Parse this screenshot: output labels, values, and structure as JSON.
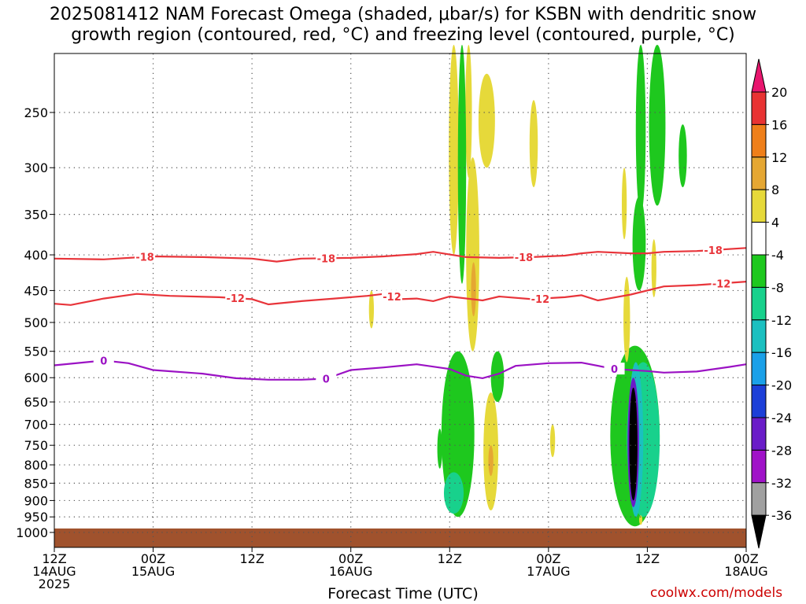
{
  "chart_data": {
    "type": "heatmap",
    "title_line1": "2025081412 NAM Forecast Omega (shaded, μbar/s) for KSBN with dendritic snow",
    "title_line2": "growth region (contoured, red, °C) and freezing level (contoured, purple, °C)",
    "xlabel": "Forecast Time (UTC)",
    "x_ticks": [
      {
        "hour": 0,
        "line1": "12Z",
        "line2": "14AUG",
        "line3": "2025"
      },
      {
        "hour": 12,
        "line1": "00Z",
        "line2": "15AUG",
        "line3": ""
      },
      {
        "hour": 24,
        "line1": "12Z",
        "line2": "",
        "line3": ""
      },
      {
        "hour": 36,
        "line1": "00Z",
        "line2": "16AUG",
        "line3": ""
      },
      {
        "hour": 48,
        "line1": "12Z",
        "line2": "",
        "line3": ""
      },
      {
        "hour": 60,
        "line1": "00Z",
        "line2": "17AUG",
        "line3": ""
      },
      {
        "hour": 72,
        "line1": "12Z",
        "line2": "",
        "line3": ""
      },
      {
        "hour": 84,
        "line1": "00Z",
        "line2": "18AUG",
        "line3": ""
      }
    ],
    "x_range_hours": [
      0,
      84
    ],
    "y_ticks_mb": [
      250,
      300,
      350,
      400,
      450,
      500,
      550,
      600,
      650,
      700,
      750,
      800,
      850,
      900,
      950,
      1000
    ],
    "y_range_mb": [
      200,
      1010
    ],
    "y_scale": "log-pressure",
    "grid": true,
    "colorbar_labels": [
      "20",
      "16",
      "12",
      "8",
      "4",
      "-4",
      "-8",
      "-12",
      "-16",
      "-20",
      "-24",
      "-28",
      "-32",
      "-36"
    ],
    "colorbar_colors": [
      "#e8166e",
      "#e83333",
      "#ef7f1a",
      "#e5a733",
      "#e6d93a",
      "#ffffff",
      "#1ec81e",
      "#18d18c",
      "#1bc0c0",
      "#1aa0e8",
      "#1c3fd8",
      "#6a1cc8",
      "#a012c8",
      "#a0a0a0",
      "#000000"
    ],
    "contours_red_temp_c": [
      {
        "label": "-18",
        "label_hours": [
          11,
          33,
          57,
          80
        ],
        "points": [
          [
            0,
            405
          ],
          [
            6,
            406
          ],
          [
            12,
            402
          ],
          [
            18,
            403
          ],
          [
            24,
            405
          ],
          [
            27,
            409
          ],
          [
            30,
            405
          ],
          [
            36,
            404
          ],
          [
            40,
            402
          ],
          [
            44,
            399
          ],
          [
            46,
            396
          ],
          [
            50,
            403
          ],
          [
            54,
            404
          ],
          [
            58,
            403
          ],
          [
            62,
            401
          ],
          [
            64,
            398
          ],
          [
            66,
            396
          ],
          [
            70,
            398
          ],
          [
            72,
            398
          ],
          [
            74,
            396
          ],
          [
            78,
            395
          ],
          [
            84,
            391
          ]
        ]
      },
      {
        "label": "-12",
        "label_hours": [
          22,
          41,
          59,
          81
        ],
        "points": [
          [
            0,
            470
          ],
          [
            2,
            472
          ],
          [
            6,
            462
          ],
          [
            10,
            455
          ],
          [
            14,
            458
          ],
          [
            20,
            460
          ],
          [
            24,
            463
          ],
          [
            26,
            471
          ],
          [
            30,
            466
          ],
          [
            34,
            462
          ],
          [
            38,
            458
          ],
          [
            40,
            455
          ],
          [
            42,
            463
          ],
          [
            44,
            462
          ],
          [
            46,
            466
          ],
          [
            48,
            459
          ],
          [
            52,
            465
          ],
          [
            54,
            459
          ],
          [
            58,
            463
          ],
          [
            62,
            460
          ],
          [
            64,
            457
          ],
          [
            66,
            465
          ],
          [
            70,
            456
          ],
          [
            74,
            444
          ],
          [
            78,
            442
          ],
          [
            84,
            437
          ]
        ]
      }
    ],
    "contours_purple_temp_c": [
      {
        "label": "0",
        "label_hours": [
          6,
          33,
          68
        ],
        "points": [
          [
            0,
            576
          ],
          [
            6,
            567
          ],
          [
            9,
            572
          ],
          [
            12,
            585
          ],
          [
            18,
            592
          ],
          [
            22,
            601
          ],
          [
            26,
            604
          ],
          [
            30,
            604
          ],
          [
            33,
            602
          ],
          [
            36,
            585
          ],
          [
            40,
            580
          ],
          [
            44,
            574
          ],
          [
            48,
            583
          ],
          [
            50,
            596
          ],
          [
            52,
            601
          ],
          [
            54,
            592
          ],
          [
            56,
            577
          ],
          [
            60,
            572
          ],
          [
            64,
            571
          ],
          [
            68,
            583
          ],
          [
            72,
            587
          ],
          [
            74,
            590
          ],
          [
            78,
            588
          ],
          [
            82,
            579
          ],
          [
            84,
            574
          ]
        ]
      }
    ],
    "shading_blobs": [
      {
        "value": 5,
        "hour_center": 38.5,
        "p_center": 480,
        "hour_halfwidth": 0.3,
        "p_halfheight": 30
      },
      {
        "value": 6,
        "hour_center": 48.5,
        "p_center": 270,
        "hour_halfwidth": 0.6,
        "p_halfheight": 130
      },
      {
        "value": 6,
        "hour_center": 50.3,
        "p_center": 250,
        "hour_halfwidth": 0.4,
        "p_halfheight": 60
      },
      {
        "value": 5,
        "hour_center": 52.5,
        "p_center": 260,
        "hour_halfwidth": 1.0,
        "p_halfheight": 40
      },
      {
        "value": 5,
        "hour_center": 58.2,
        "p_center": 280,
        "hour_halfwidth": 0.5,
        "p_halfheight": 40
      },
      {
        "value": -6,
        "hour_center": 49.5,
        "p_center": 300,
        "hour_halfwidth": 0.5,
        "p_halfheight": 140
      },
      {
        "value": 6,
        "hour_center": 50.8,
        "p_center": 420,
        "hour_halfwidth": 0.8,
        "p_halfheight": 130
      },
      {
        "value": 10,
        "hour_center": 50.9,
        "p_center": 450,
        "hour_halfwidth": 0.3,
        "p_halfheight": 40
      },
      {
        "value": 6,
        "hour_center": 53.0,
        "p_center": 780,
        "hour_halfwidth": 0.9,
        "p_halfheight": 150
      },
      {
        "value": 9,
        "hour_center": 53.0,
        "p_center": 790,
        "hour_halfwidth": 0.3,
        "p_halfheight": 40
      },
      {
        "value": 5,
        "hour_center": 60.5,
        "p_center": 740,
        "hour_halfwidth": 0.3,
        "p_halfheight": 40
      },
      {
        "value": -6,
        "hour_center": 49.0,
        "p_center": 750,
        "hour_halfwidth": 2.0,
        "p_halfheight": 200
      },
      {
        "value": -10,
        "hour_center": 48.5,
        "p_center": 880,
        "hour_halfwidth": 1.2,
        "p_halfheight": 60
      },
      {
        "value": -6,
        "hour_center": 46.8,
        "p_center": 760,
        "hour_halfwidth": 0.3,
        "p_halfheight": 50
      },
      {
        "value": -6,
        "hour_center": 53.8,
        "p_center": 600,
        "hour_halfwidth": 0.8,
        "p_halfheight": 50
      },
      {
        "value": -6,
        "hour_center": 71.2,
        "p_center": 270,
        "hour_halfwidth": 0.6,
        "p_halfheight": 80
      },
      {
        "value": -6,
        "hour_center": 73.2,
        "p_center": 270,
        "hour_halfwidth": 1.0,
        "p_halfheight": 70
      },
      {
        "value": -6,
        "hour_center": 76.3,
        "p_center": 290,
        "hour_halfwidth": 0.5,
        "p_halfheight": 30
      },
      {
        "value": -6,
        "hour_center": 71.0,
        "p_center": 390,
        "hour_halfwidth": 0.8,
        "p_halfheight": 60
      },
      {
        "value": -6,
        "hour_center": 70.5,
        "p_center": 760,
        "hour_halfwidth": 3.0,
        "p_halfheight": 220
      },
      {
        "value": -10,
        "hour_center": 71.5,
        "p_center": 760,
        "hour_halfwidth": 2.0,
        "p_halfheight": 190
      },
      {
        "value": -15,
        "hour_center": 70.6,
        "p_center": 760,
        "hour_halfwidth": 0.9,
        "p_halfheight": 190
      },
      {
        "value": -25,
        "hour_center": 70.3,
        "p_center": 760,
        "hour_halfwidth": 0.7,
        "p_halfheight": 160
      },
      {
        "value": -40,
        "hour_center": 70.3,
        "p_center": 760,
        "hour_halfwidth": 0.5,
        "p_halfheight": 140
      },
      {
        "value": 6,
        "hour_center": 69.2,
        "p_center": 340,
        "hour_halfwidth": 0.3,
        "p_halfheight": 40
      },
      {
        "value": 6,
        "hour_center": 69.5,
        "p_center": 500,
        "hour_halfwidth": 0.4,
        "p_halfheight": 70
      },
      {
        "value": 6,
        "hour_center": 72.8,
        "p_center": 420,
        "hour_halfwidth": 0.3,
        "p_halfheight": 40
      },
      {
        "value": 6,
        "hour_center": 71.2,
        "p_center": 960,
        "hour_halfwidth": 0.2,
        "p_halfheight": 15
      }
    ]
  },
  "credit": "coolwx.com/models"
}
